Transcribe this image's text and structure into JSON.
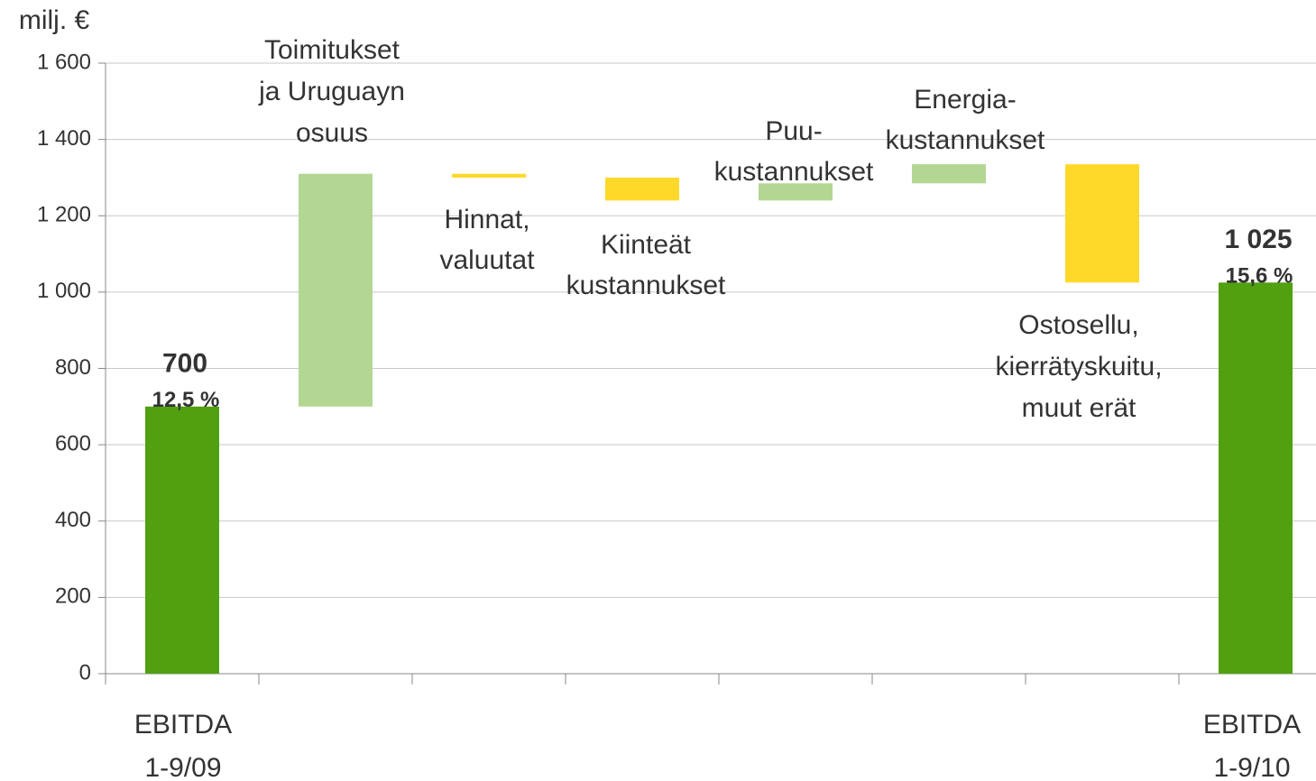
{
  "chart_data": {
    "type": "waterfall",
    "y_axis_label": "milj. €",
    "categories": [
      "EBITDA\n1-9/09",
      "Toimitukset\nja Uruguayn\nosuus",
      "Hinnat,\nvaluutat",
      "Kiinteät\nkustannukset",
      "Puu-\nkustannukset",
      "Energia-\nkustannukset",
      "Ostosellu,\nkierrätyskuitu,\nmuut erät",
      "EBITDA\n1-9/10"
    ],
    "measures": [
      "absolute",
      "relative",
      "relative",
      "relative",
      "relative",
      "relative",
      "relative",
      "total"
    ],
    "values": [
      700,
      610,
      -10,
      -60,
      45,
      50,
      -310,
      1025
    ],
    "value_labels": [
      "700",
      null,
      null,
      null,
      null,
      null,
      null,
      "1 025"
    ],
    "annotations": [
      "12,5 %",
      null,
      null,
      null,
      null,
      null,
      null,
      "15,6 %"
    ],
    "colors": {
      "total": "#50a00f",
      "increase": "#b3d693",
      "decrease": "#ffd92a"
    },
    "ylim": [
      0,
      1600
    ],
    "yticks": [
      0,
      200,
      400,
      600,
      800,
      {
        "value": 1000,
        "label": "1 000"
      },
      {
        "value": 1200,
        "label": "1 200"
      },
      {
        "value": 1400,
        "label": "1 400"
      },
      {
        "value": 1600,
        "label": "1 600"
      }
    ],
    "grid": true
  }
}
